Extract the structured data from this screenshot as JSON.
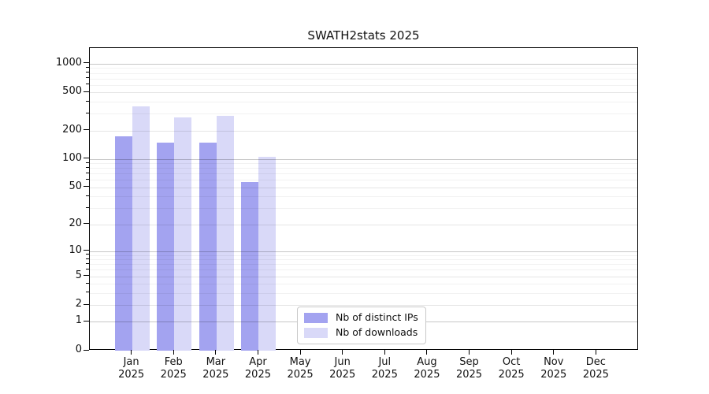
{
  "chart_data": {
    "type": "bar",
    "title": "SWATH2stats 2025",
    "categories": [
      "Jan",
      "Feb",
      "Mar",
      "Apr",
      "May",
      "Jun",
      "Jul",
      "Aug",
      "Sep",
      "Oct",
      "Nov",
      "Dec"
    ],
    "year_label": "2025",
    "series": [
      {
        "name": "Nb of distinct IPs",
        "color": "#a3a3f0",
        "values": [
          175,
          150,
          150,
          57,
          null,
          null,
          null,
          null,
          null,
          null,
          null,
          null
        ]
      },
      {
        "name": "Nb of downloads",
        "color": "#d9d9f8",
        "values": [
          360,
          275,
          285,
          105,
          null,
          null,
          null,
          null,
          null,
          null,
          null,
          null
        ]
      }
    ],
    "xlabel": "",
    "ylabel": "",
    "y_scale": "log10(1+value)",
    "y_ticks": [
      0,
      1,
      2,
      5,
      10,
      20,
      50,
      100,
      200,
      500,
      1000
    ],
    "y_minor_ticks": [
      3,
      4,
      6,
      7,
      8,
      9,
      30,
      40,
      60,
      70,
      80,
      90,
      300,
      400,
      600,
      700,
      800,
      900
    ],
    "ylim": [
      0,
      1460
    ],
    "grid": true,
    "legend_position": "lower-center-left-inside"
  }
}
